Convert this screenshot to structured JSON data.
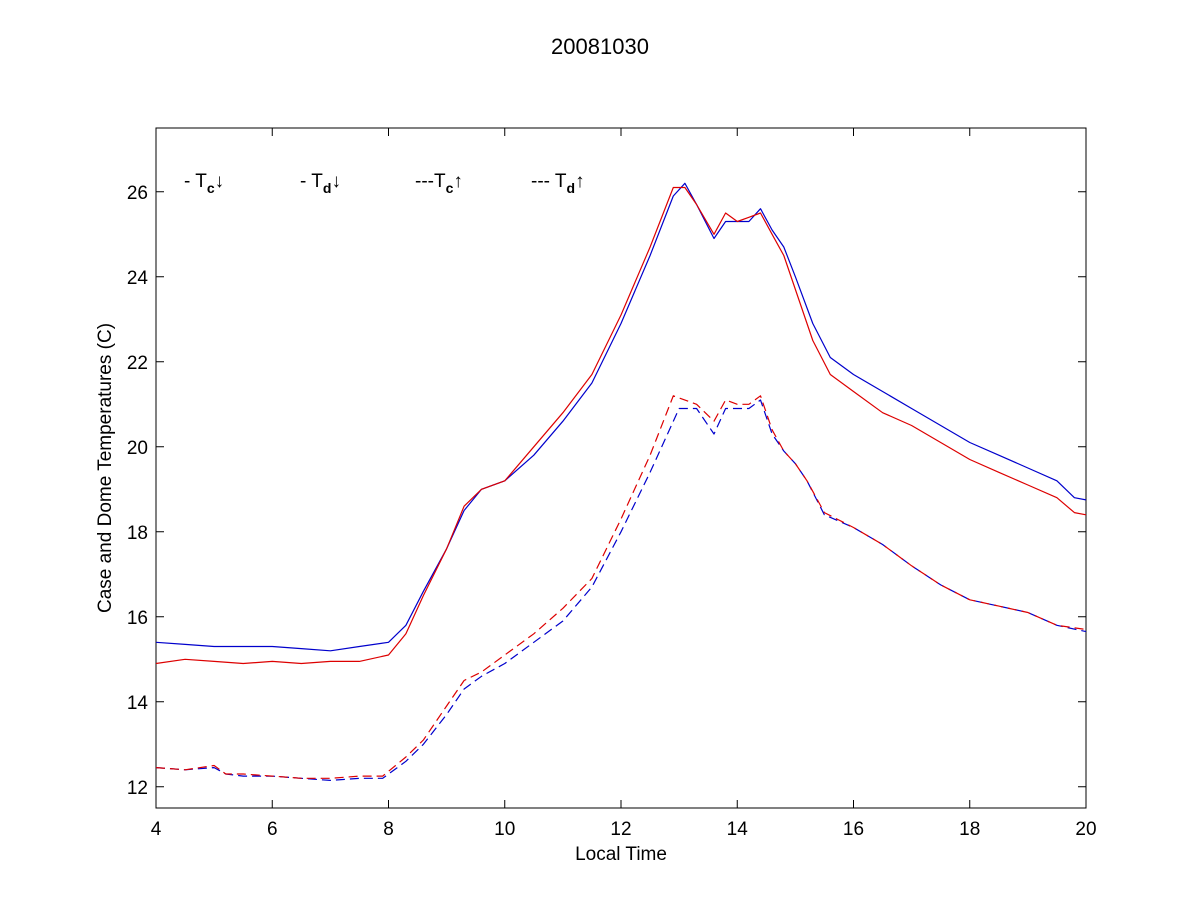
{
  "chart_data": {
    "type": "line",
    "title": "20081030",
    "xlabel": "Local Time",
    "ylabel": "Case and Dome Temperatures (C)",
    "xlim": [
      4,
      20
    ],
    "ylim": [
      11.5,
      27.5
    ],
    "xticks": [
      4,
      6,
      8,
      10,
      12,
      14,
      16,
      18,
      20
    ],
    "yticks": [
      12,
      14,
      16,
      18,
      20,
      22,
      24,
      26
    ],
    "grid": false,
    "legend_position": "top-left inside axes",
    "legend": [
      {
        "prefix": "- T",
        "sub": "c",
        "arrow": "↓",
        "color": "#0000cc"
      },
      {
        "prefix": "- T",
        "sub": "d",
        "arrow": "↓",
        "color": "#dd0000"
      },
      {
        "prefix": "---T",
        "sub": "c",
        "arrow": "↑",
        "color": "#0000cc"
      },
      {
        "prefix": "--- T",
        "sub": "d",
        "arrow": "↑",
        "color": "#dd0000"
      }
    ],
    "series": [
      {
        "id": "tc-down",
        "color": "#0000cc",
        "dash": "solid",
        "x": [
          4.0,
          4.5,
          5.0,
          5.5,
          6.0,
          6.5,
          7.0,
          7.5,
          8.0,
          8.3,
          8.6,
          9.0,
          9.3,
          9.6,
          10.0,
          10.5,
          11.0,
          11.5,
          12.0,
          12.5,
          12.9,
          13.1,
          13.3,
          13.6,
          13.8,
          14.0,
          14.2,
          14.4,
          14.6,
          14.8,
          15.0,
          15.3,
          15.6,
          16.0,
          16.5,
          17.0,
          17.5,
          18.0,
          18.5,
          19.0,
          19.5,
          19.8,
          20.0
        ],
        "y": [
          15.4,
          15.35,
          15.3,
          15.3,
          15.3,
          15.25,
          15.2,
          15.3,
          15.4,
          15.8,
          16.6,
          17.6,
          18.5,
          19.0,
          19.2,
          19.8,
          20.6,
          21.5,
          22.9,
          24.5,
          25.9,
          26.2,
          25.7,
          24.9,
          25.3,
          25.3,
          25.3,
          25.6,
          25.1,
          24.7,
          24.0,
          22.9,
          22.1,
          21.7,
          21.3,
          20.9,
          20.5,
          20.1,
          19.8,
          19.5,
          19.2,
          18.8,
          18.75
        ]
      },
      {
        "id": "td-down",
        "color": "#dd0000",
        "dash": "solid",
        "x": [
          4.0,
          4.5,
          5.0,
          5.5,
          6.0,
          6.5,
          7.0,
          7.5,
          8.0,
          8.3,
          8.6,
          9.0,
          9.3,
          9.6,
          10.0,
          10.5,
          11.0,
          11.5,
          12.0,
          12.5,
          12.9,
          13.1,
          13.3,
          13.6,
          13.8,
          14.0,
          14.2,
          14.4,
          14.6,
          14.8,
          15.0,
          15.3,
          15.6,
          16.0,
          16.5,
          17.0,
          17.5,
          18.0,
          18.5,
          19.0,
          19.5,
          19.8,
          20.0
        ],
        "y": [
          14.9,
          15.0,
          14.95,
          14.9,
          14.95,
          14.9,
          14.95,
          14.95,
          15.1,
          15.6,
          16.5,
          17.6,
          18.6,
          19.0,
          19.2,
          20.0,
          20.8,
          21.7,
          23.1,
          24.7,
          26.1,
          26.1,
          25.7,
          25.0,
          25.5,
          25.3,
          25.4,
          25.5,
          25.0,
          24.5,
          23.7,
          22.5,
          21.7,
          21.3,
          20.8,
          20.5,
          20.1,
          19.7,
          19.4,
          19.1,
          18.8,
          18.45,
          18.4
        ]
      },
      {
        "id": "tc-up",
        "color": "#0000cc",
        "dash": "dashed",
        "x": [
          4.0,
          4.5,
          5.0,
          5.2,
          5.5,
          6.0,
          6.5,
          7.0,
          7.5,
          7.9,
          8.3,
          8.6,
          9.0,
          9.3,
          9.6,
          10.0,
          10.5,
          11.0,
          11.5,
          12.0,
          12.5,
          13.0,
          13.3,
          13.6,
          13.8,
          14.0,
          14.2,
          14.4,
          14.6,
          14.8,
          15.0,
          15.2,
          15.5,
          16.0,
          16.5,
          17.0,
          17.5,
          18.0,
          18.5,
          19.0,
          19.5,
          20.0
        ],
        "y": [
          12.45,
          12.4,
          12.45,
          12.3,
          12.25,
          12.25,
          12.2,
          12.15,
          12.2,
          12.2,
          12.6,
          13.0,
          13.7,
          14.3,
          14.6,
          14.9,
          15.4,
          15.9,
          16.7,
          18.0,
          19.4,
          20.9,
          20.9,
          20.3,
          20.9,
          20.9,
          20.9,
          21.1,
          20.3,
          19.9,
          19.6,
          19.2,
          18.4,
          18.1,
          17.7,
          17.2,
          16.75,
          16.4,
          16.25,
          16.1,
          15.8,
          15.65
        ]
      },
      {
        "id": "td-up",
        "color": "#dd0000",
        "dash": "dashed",
        "x": [
          4.0,
          4.5,
          5.0,
          5.2,
          5.5,
          6.0,
          6.5,
          7.0,
          7.5,
          7.9,
          8.3,
          8.6,
          9.0,
          9.3,
          9.6,
          10.0,
          10.5,
          11.0,
          11.5,
          12.0,
          12.5,
          12.9,
          13.3,
          13.6,
          13.8,
          14.0,
          14.2,
          14.4,
          14.6,
          14.8,
          15.0,
          15.2,
          15.5,
          16.0,
          16.5,
          17.0,
          17.5,
          18.0,
          18.5,
          19.0,
          19.5,
          20.0
        ],
        "y": [
          12.45,
          12.4,
          12.5,
          12.3,
          12.3,
          12.25,
          12.2,
          12.2,
          12.25,
          12.25,
          12.7,
          13.1,
          13.9,
          14.5,
          14.7,
          15.1,
          15.6,
          16.2,
          16.9,
          18.3,
          19.8,
          21.2,
          21.0,
          20.6,
          21.1,
          21.0,
          21.0,
          21.2,
          20.4,
          19.9,
          19.6,
          19.2,
          18.45,
          18.1,
          17.7,
          17.2,
          16.75,
          16.4,
          16.25,
          16.1,
          15.8,
          15.7
        ]
      }
    ]
  }
}
